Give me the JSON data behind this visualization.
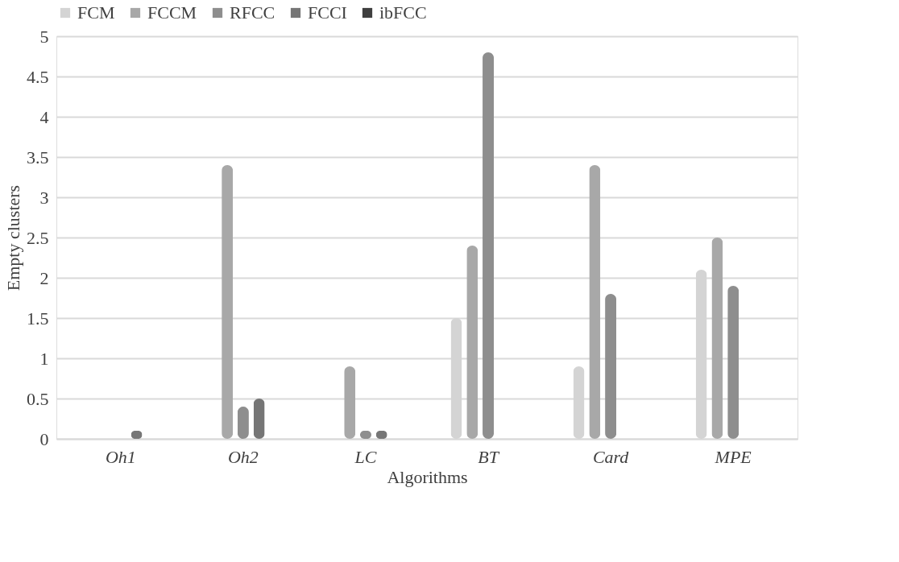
{
  "chart_data": {
    "type": "bar",
    "xlabel": "Algorithms",
    "ylabel": "Empty clusters",
    "categories": [
      "Oh1",
      "Oh2",
      "LC",
      "BT",
      "Card",
      "MPE"
    ],
    "series": [
      {
        "name": "FCM",
        "color": "#d4d4d4",
        "values": [
          0,
          0,
          0,
          1.5,
          0.9,
          2.1
        ]
      },
      {
        "name": "FCCM",
        "color": "#a8a8a8",
        "values": [
          0,
          3.4,
          0.9,
          2.4,
          3.4,
          2.5
        ]
      },
      {
        "name": "RFCC",
        "color": "#8e8e8e",
        "values": [
          0,
          0.4,
          0.1,
          4.8,
          1.8,
          1.9
        ]
      },
      {
        "name": "FCCI",
        "color": "#767676",
        "values": [
          0.1,
          0.5,
          0.1,
          0,
          0,
          0
        ]
      },
      {
        "name": "ibFCC",
        "color": "#3f3f3f",
        "values": [
          0,
          0,
          0,
          0,
          0,
          0
        ]
      }
    ],
    "ylim": [
      0,
      5
    ],
    "yticks": [
      0,
      0.5,
      1,
      1.5,
      2,
      2.5,
      3,
      3.5,
      4,
      4.5,
      5
    ],
    "grid": "y",
    "legend": "top"
  }
}
